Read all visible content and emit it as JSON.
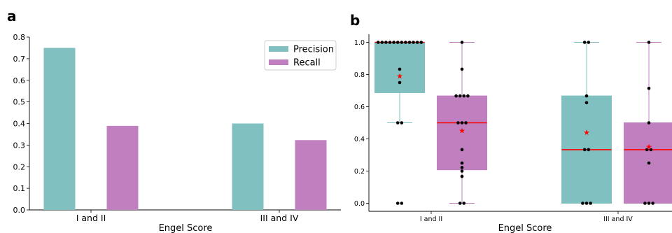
{
  "chart_data": [
    {
      "panel_label": "a",
      "type": "bar",
      "xlabel": "Engel Score",
      "ylabel": "",
      "categories": [
        "I and II",
        "III and IV"
      ],
      "series": [
        {
          "name": "Precision",
          "values": [
            0.75,
            0.4
          ],
          "color": "#80c0c0"
        },
        {
          "name": "Recall",
          "values": [
            0.389,
            0.323
          ],
          "color": "#c080c0"
        }
      ],
      "ylim": [
        0,
        0.8
      ],
      "yticks": [
        "0.0",
        "0.1",
        "0.2",
        "0.3",
        "0.4",
        "0.5",
        "0.6",
        "0.7",
        "0.8"
      ],
      "grid": false,
      "legend": "top-right"
    },
    {
      "panel_label": "b",
      "type": "box",
      "xlabel": "Engel Score",
      "ylabel": "",
      "categories": [
        "I and II",
        "III and IV"
      ],
      "ylim": [
        -0.05,
        1.05
      ],
      "yticks": [
        "0.0",
        "0.2",
        "0.4",
        "0.6",
        "0.8",
        "1.0"
      ],
      "grid": false,
      "boxes": [
        {
          "category": "I and II",
          "series": "Precision",
          "color": "#80c0c0",
          "q1": 0.687,
          "median": 1.0,
          "q3": 1.0,
          "whisker_low": 0.5,
          "whisker_high": 1.0,
          "mean": 0.79,
          "points": [
            1,
            1,
            1,
            1,
            1,
            1,
            1,
            1,
            1,
            1,
            1,
            1,
            0.833,
            0.75,
            0.5,
            0.5,
            0,
            0
          ]
        },
        {
          "category": "I and II",
          "series": "Recall",
          "color": "#c080c0",
          "q1": 0.208,
          "median": 0.5,
          "q3": 0.667,
          "whisker_low": 0.0,
          "whisker_high": 1.0,
          "mean": 0.45,
          "points": [
            1,
            0.833,
            0.667,
            0.667,
            0.667,
            0.667,
            0.5,
            0.5,
            0.5,
            0.333,
            0.25,
            0.222,
            0.2,
            0.167,
            0,
            0
          ]
        },
        {
          "category": "III and IV",
          "series": "Precision",
          "color": "#80c0c0",
          "q1": 0.0,
          "median": 0.333,
          "q3": 0.667,
          "whisker_low": 0.0,
          "whisker_high": 1.0,
          "mean": 0.44,
          "points": [
            1,
            1,
            0.667,
            0.625,
            0.333,
            0.333,
            0,
            0,
            0
          ]
        },
        {
          "category": "III and IV",
          "series": "Recall",
          "color": "#c080c0",
          "q1": 0.0,
          "median": 0.333,
          "q3": 0.5,
          "whisker_low": 0.0,
          "whisker_high": 1.0,
          "mean": 0.35,
          "points": [
            1,
            0.714,
            0.5,
            0.333,
            0.333,
            0.25,
            0,
            0,
            0
          ]
        }
      ],
      "median_color": "#ff0000",
      "mean_marker_color": "#ff0000"
    }
  ]
}
